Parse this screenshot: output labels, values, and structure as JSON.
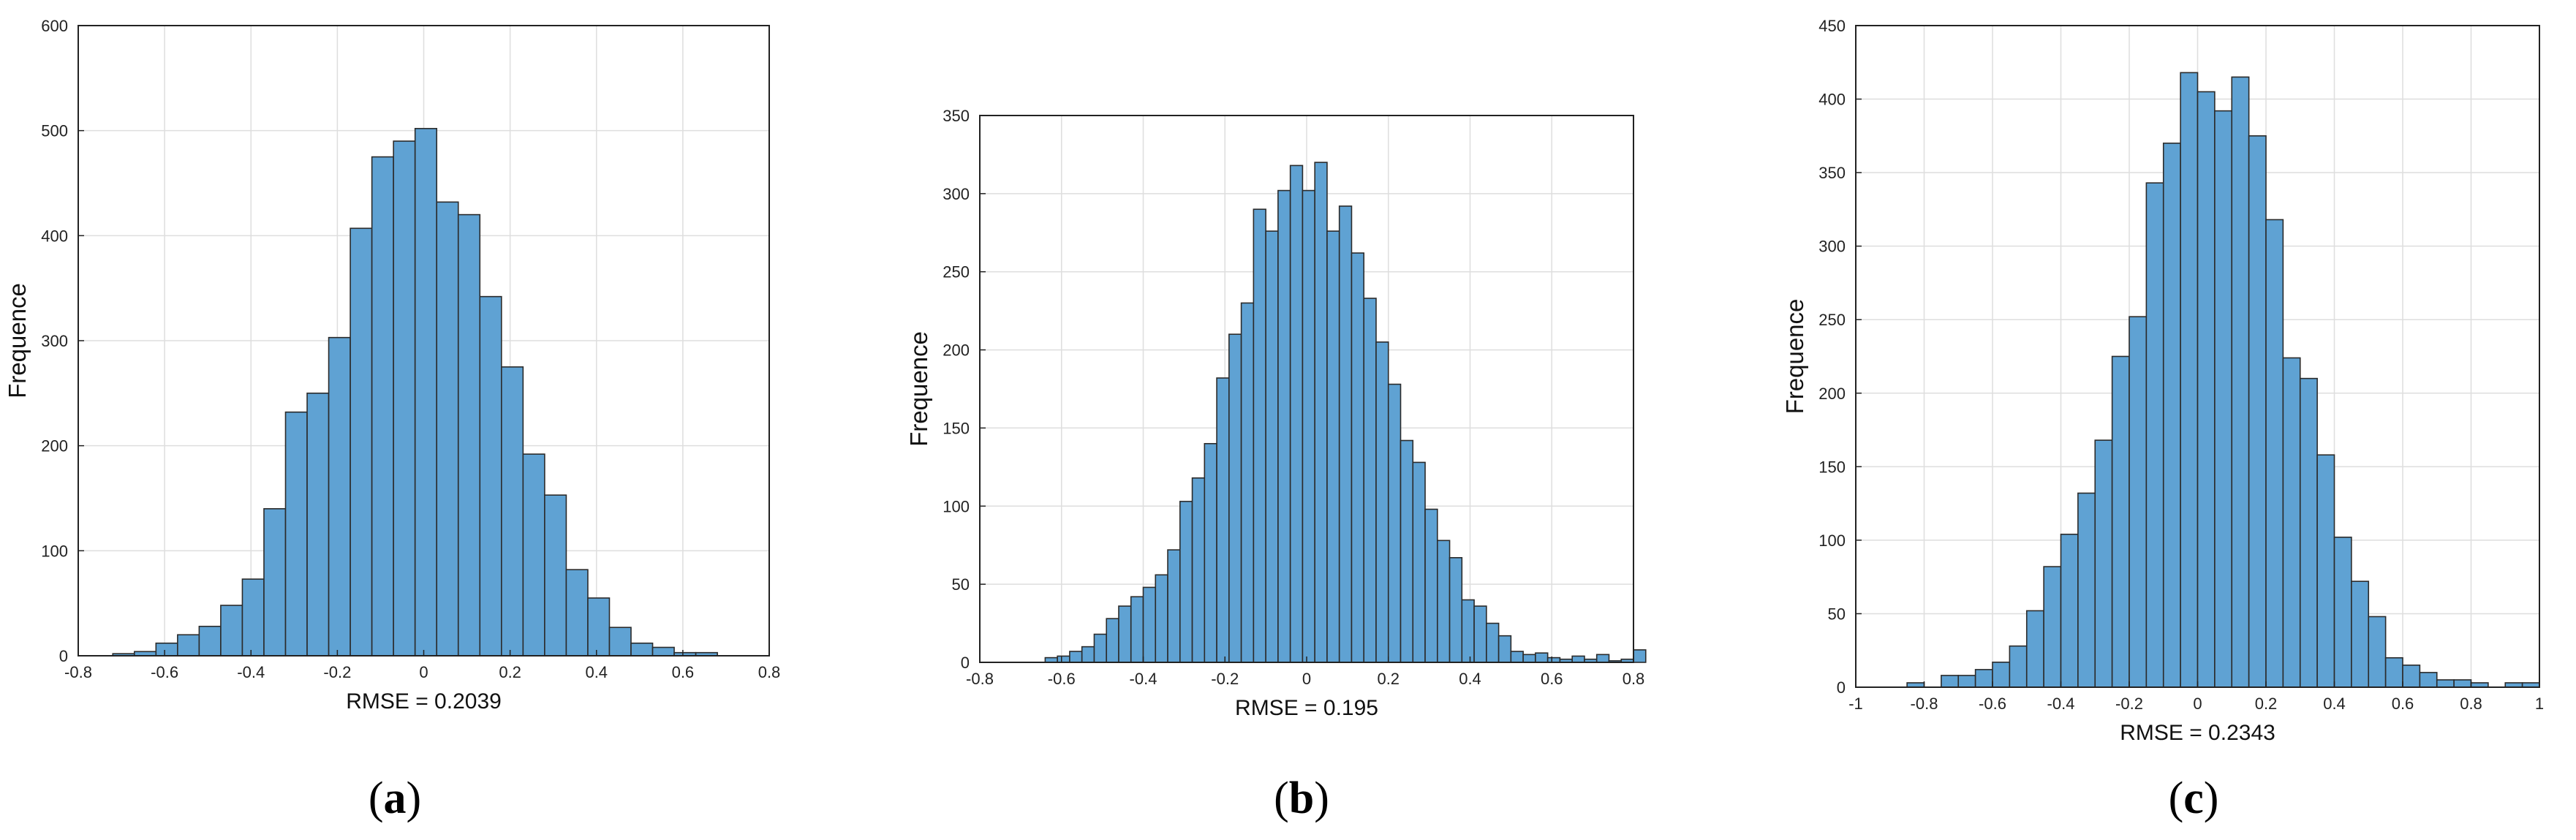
{
  "chart_data": [
    {
      "type": "bar",
      "subtype": "histogram",
      "xlabel": "RMSE = 0.2039",
      "ylabel": "Frequence",
      "xlim": [
        -0.8,
        0.8
      ],
      "ylim": [
        0,
        600
      ],
      "xticks": [
        "-0.8",
        "-0.6",
        "-0.4",
        "-0.2",
        "0",
        "0.2",
        "0.4",
        "0.6",
        "0.8"
      ],
      "yticks": [
        "0",
        "100",
        "200",
        "300",
        "400",
        "500",
        "600"
      ],
      "grid": true,
      "bin_start": -0.72,
      "bin_width": 0.05,
      "values": [
        2,
        4,
        12,
        20,
        28,
        48,
        73,
        140,
        232,
        250,
        303,
        407,
        475,
        490,
        502,
        432,
        420,
        342,
        275,
        192,
        153,
        82,
        55,
        27,
        12,
        8,
        3,
        3
      ],
      "color": "#5fa2d3",
      "panel_label": {
        "open": "(",
        "letter": "a",
        "close": ")"
      }
    },
    {
      "type": "bar",
      "subtype": "histogram",
      "xlabel": "RMSE = 0.195",
      "ylabel": "Frequence",
      "xlim": [
        -0.8,
        0.8
      ],
      "ylim": [
        0,
        350
      ],
      "xticks": [
        "-0.8",
        "-0.6",
        "-0.4",
        "-0.2",
        "0",
        "0.2",
        "0.4",
        "0.6",
        "0.8"
      ],
      "yticks": [
        "0",
        "50",
        "100",
        "150",
        "200",
        "250",
        "300",
        "350"
      ],
      "grid": true,
      "bin_start": -0.64,
      "bin_width": 0.03,
      "values": [
        3,
        4,
        7,
        10,
        18,
        28,
        36,
        42,
        48,
        56,
        72,
        103,
        118,
        140,
        182,
        210,
        230,
        290,
        276,
        302,
        318,
        302,
        320,
        276,
        292,
        262,
        233,
        205,
        178,
        142,
        128,
        98,
        78,
        67,
        40,
        36,
        25,
        17,
        7,
        5,
        6,
        3,
        2,
        4,
        2,
        5,
        1,
        2,
        8
      ],
      "color": "#5fa2d3",
      "panel_label": {
        "open": "(",
        "letter": "b",
        "close": ")"
      }
    },
    {
      "type": "bar",
      "subtype": "histogram",
      "xlabel": "RMSE = 0.2343",
      "ylabel": "Frequence",
      "xlim": [
        -1,
        1
      ],
      "ylim": [
        0,
        450
      ],
      "xticks": [
        "-1",
        "-0.8",
        "-0.6",
        "-0.4",
        "-0.2",
        "0",
        "0.2",
        "0.4",
        "0.6",
        "0.8",
        "1"
      ],
      "yticks": [
        "0",
        "50",
        "100",
        "150",
        "200",
        "250",
        "300",
        "350",
        "400",
        "450"
      ],
      "grid": true,
      "bin_start": -0.85,
      "bin_width": 0.05,
      "values": [
        3,
        0,
        8,
        8,
        12,
        17,
        28,
        52,
        82,
        104,
        132,
        168,
        225,
        252,
        343,
        370,
        418,
        405,
        392,
        415,
        375,
        318,
        224,
        210,
        158,
        102,
        72,
        48,
        20,
        15,
        10,
        5,
        5,
        3,
        0,
        3,
        3
      ],
      "color": "#5fa2d3",
      "panel_label": {
        "open": "(",
        "letter": "c",
        "close": ")"
      }
    }
  ]
}
